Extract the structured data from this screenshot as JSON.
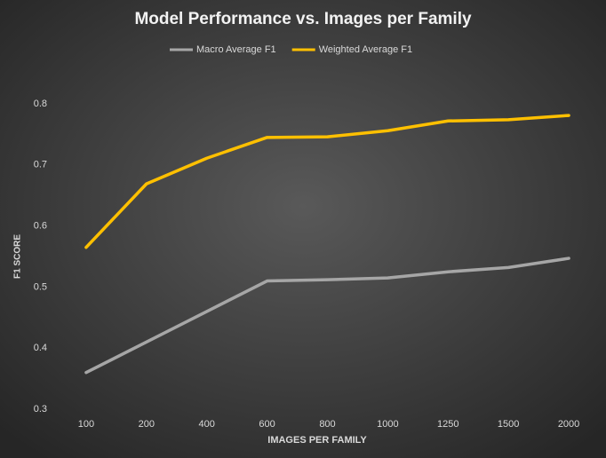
{
  "chart_data": {
    "type": "line",
    "title": "Model Performance vs. Images per Family",
    "x_label": "IMAGES PER FAMILY",
    "y_label": "F1 SCORE",
    "categories": [
      "100",
      "200",
      "400",
      "600",
      "800",
      "1000",
      "1250",
      "1500",
      "2000"
    ],
    "series": [
      {
        "name": "Macro Average F1",
        "color": "#a6a6a6",
        "values": [
          0.36,
          0.41,
          0.46,
          0.51,
          0.512,
          0.515,
          0.525,
          0.532,
          0.547
        ]
      },
      {
        "name": "Weighted Average F1",
        "color": "#ffc000",
        "values": [
          0.565,
          0.669,
          0.711,
          0.745,
          0.746,
          0.756,
          0.772,
          0.774,
          0.781
        ]
      }
    ],
    "ylim": [
      0.3,
      0.8
    ],
    "yticks": [
      0.3,
      0.4,
      0.5,
      0.6,
      0.7,
      0.8
    ],
    "grid": false,
    "legend": "top"
  }
}
